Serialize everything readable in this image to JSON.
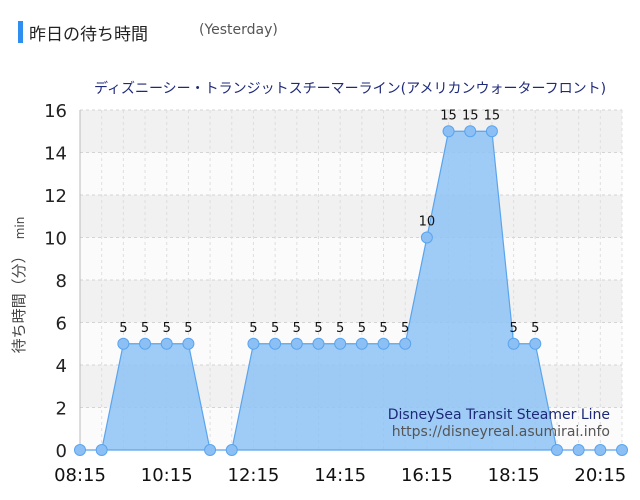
{
  "header": {
    "title": "昨日の待ち時間",
    "subtitle": "(Yesterday)"
  },
  "watermark": {
    "line1": "DisneySea Transit Steamer Line",
    "line2": "https://disneyreal.asumirai.info"
  },
  "colors": {
    "accent": "#2f8ff0",
    "area_fill": "#8ec3f5",
    "line": "#5aa4ee",
    "point": "#8cc0f5"
  },
  "chart_data": {
    "type": "area",
    "title": "ディズニーシー・トランジットスチーマーライン(アメリカンウォーターフロント)",
    "ylabel": "待ち時間（分）",
    "yunit": "min",
    "xlabel": "",
    "ylim": [
      0,
      16
    ],
    "yticks": [
      0,
      2,
      4,
      6,
      8,
      10,
      12,
      14,
      16
    ],
    "xticks": [
      "08:15",
      "10:15",
      "12:15",
      "14:15",
      "16:15",
      "18:15",
      "20:15"
    ],
    "x": [
      "08:15",
      "08:45",
      "09:15",
      "09:45",
      "10:15",
      "10:45",
      "11:15",
      "11:45",
      "12:15",
      "12:45",
      "13:15",
      "13:45",
      "14:15",
      "14:45",
      "15:15",
      "15:45",
      "16:15",
      "16:45",
      "17:15",
      "17:45",
      "18:15",
      "18:45",
      "19:15",
      "19:45",
      "20:15",
      "20:45"
    ],
    "values": [
      0,
      0,
      5,
      5,
      5,
      5,
      0,
      0,
      5,
      5,
      5,
      5,
      5,
      5,
      5,
      5,
      10,
      15,
      15,
      15,
      5,
      5,
      0,
      0,
      0,
      0
    ],
    "data_labels": [
      "",
      "",
      "5",
      "5",
      "5",
      "5",
      "",
      "",
      "5",
      "5",
      "5",
      "5",
      "5",
      "5",
      "5",
      "5",
      "10",
      "15",
      "15",
      "15",
      "5",
      "5",
      "",
      "",
      "",
      ""
    ],
    "grid": true
  }
}
